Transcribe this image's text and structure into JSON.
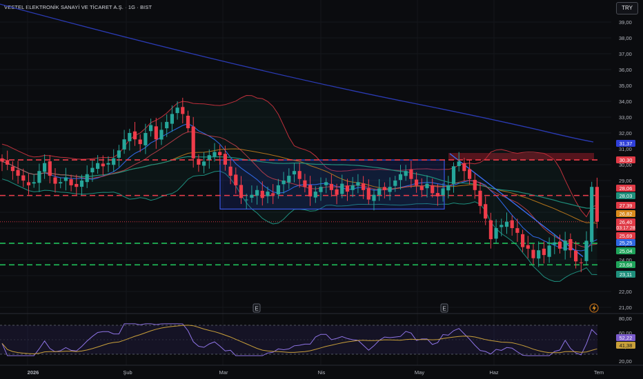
{
  "header": {
    "title": "VESTEL ELEKTRONİK SANAYİ VE TİCARET A.Ş. · 1G · BIST",
    "currency_button": "TRY"
  },
  "main_axis": {
    "ticks": [
      "39,00",
      "38,00",
      "37,00",
      "36,00",
      "35,00",
      "34,00",
      "33,00",
      "32,00",
      "31,00",
      "30,00",
      "29,00",
      "28,00",
      "27,00",
      "26,00",
      "25,00",
      "24,00",
      "23,00",
      "22,00",
      "21,00"
    ],
    "badges": [
      {
        "value": "31,37",
        "bg": "#2f3fd9",
        "fg": "#ffffff"
      },
      {
        "value": "30,30",
        "bg": "#e03a46",
        "fg": "#ffffff"
      },
      {
        "value": "28,06",
        "bg": "#e03a46",
        "fg": "#ffffff"
      },
      {
        "value": "28,03",
        "bg": "#1f8f7c",
        "fg": "#ffffff"
      },
      {
        "value": "27,39",
        "bg": "#e03a46",
        "fg": "#ffffff"
      },
      {
        "value": "26,82",
        "bg": "#d98a1c",
        "fg": "#ffffff"
      },
      {
        "value": "26,40",
        "sub": "03:17:28",
        "bg": "#e03a46",
        "fg": "#ffffff"
      },
      {
        "value": "25,69",
        "bg": "#e03a46",
        "fg": "#ffffff"
      },
      {
        "value": "25,25",
        "bg": "#2f66e0",
        "fg": "#ffffff"
      },
      {
        "value": "25,04",
        "bg": "#1fa35a",
        "fg": "#ffffff"
      },
      {
        "value": "23,68",
        "bg": "#1fa35a",
        "fg": "#ffffff"
      },
      {
        "value": "23,11",
        "bg": "#1f8f7c",
        "fg": "#ffffff"
      }
    ]
  },
  "rsi_axis": {
    "ticks": [
      "80,00",
      "60,00",
      "40,00",
      "20,00"
    ],
    "badges": [
      {
        "value": "52,22",
        "bg": "#7b5ccc",
        "fg": "#ffffff"
      },
      {
        "value": "41,38",
        "bg": "#c9a03a",
        "fg": "#1a1a1a"
      }
    ]
  },
  "time_axis": {
    "labels": [
      "2026",
      "Şub",
      "Mar",
      "Nis",
      "May",
      "Haz",
      "Tem"
    ]
  },
  "markers": {
    "earnings_label": "E"
  },
  "colors": {
    "up": "#26a69a",
    "down": "#ef3c4a",
    "background": "#0b0c0f",
    "long_ma": "#2b3bb5",
    "bb_band": "#1e8f7f",
    "resistance": "#ef3c4a",
    "support": "#1fc25a"
  },
  "chart_data": {
    "type": "candlestick",
    "title": "VESTEL ELEKTRONİK SANAYİ VE TİCARET A.Ş. · 1G · BIST",
    "ylim": [
      21,
      39.5
    ],
    "y_unit": "TRY",
    "levels": {
      "resistance_red": [
        30.3,
        28.06
      ],
      "support_green": [
        25.04,
        23.68
      ],
      "current_price": 26.4
    },
    "consolidation_box": {
      "from": "Mar",
      "high": 30.3,
      "low": 27.2
    },
    "series": [
      {
        "name": "close",
        "values": [
          30.2,
          30.0,
          29.6,
          29.3,
          29.0,
          28.7,
          28.9,
          29.6,
          30.1,
          29.3,
          28.8,
          28.9,
          29.2,
          28.7,
          28.6,
          29.0,
          29.4,
          29.8,
          30.1,
          29.9,
          30.1,
          30.4,
          30.9,
          31.6,
          32.0,
          31.6,
          31.3,
          32.0,
          32.5,
          31.6,
          32.2,
          32.7,
          33.2,
          33.6,
          33.2,
          32.3,
          30.4,
          30.0,
          30.2,
          30.6,
          30.8,
          30.6,
          30.0,
          29.3,
          28.7,
          27.9,
          27.8,
          28.1,
          28.4,
          27.9,
          28.3,
          28.1,
          28.7,
          29.0,
          29.3,
          29.6,
          29.1,
          28.6,
          28.0,
          28.3,
          28.6,
          28.9,
          28.4,
          28.1,
          28.8,
          28.3,
          28.7,
          28.9,
          28.4,
          27.8,
          28.1,
          28.5,
          28.4,
          28.6,
          29.0,
          29.4,
          29.6,
          29.1,
          28.7,
          28.4,
          28.8,
          28.2,
          28.0,
          28.5,
          28.7,
          29.9,
          30.2,
          29.6,
          29.1,
          28.4,
          27.4,
          26.6,
          25.3,
          26.0,
          26.2,
          26.4,
          26.0,
          25.7,
          24.8,
          24.7,
          24.1,
          24.6,
          24.3,
          24.9,
          25.1,
          24.7,
          25.2,
          24.6,
          23.9,
          23.8,
          25.2,
          28.6,
          26.4
        ]
      }
    ]
  }
}
